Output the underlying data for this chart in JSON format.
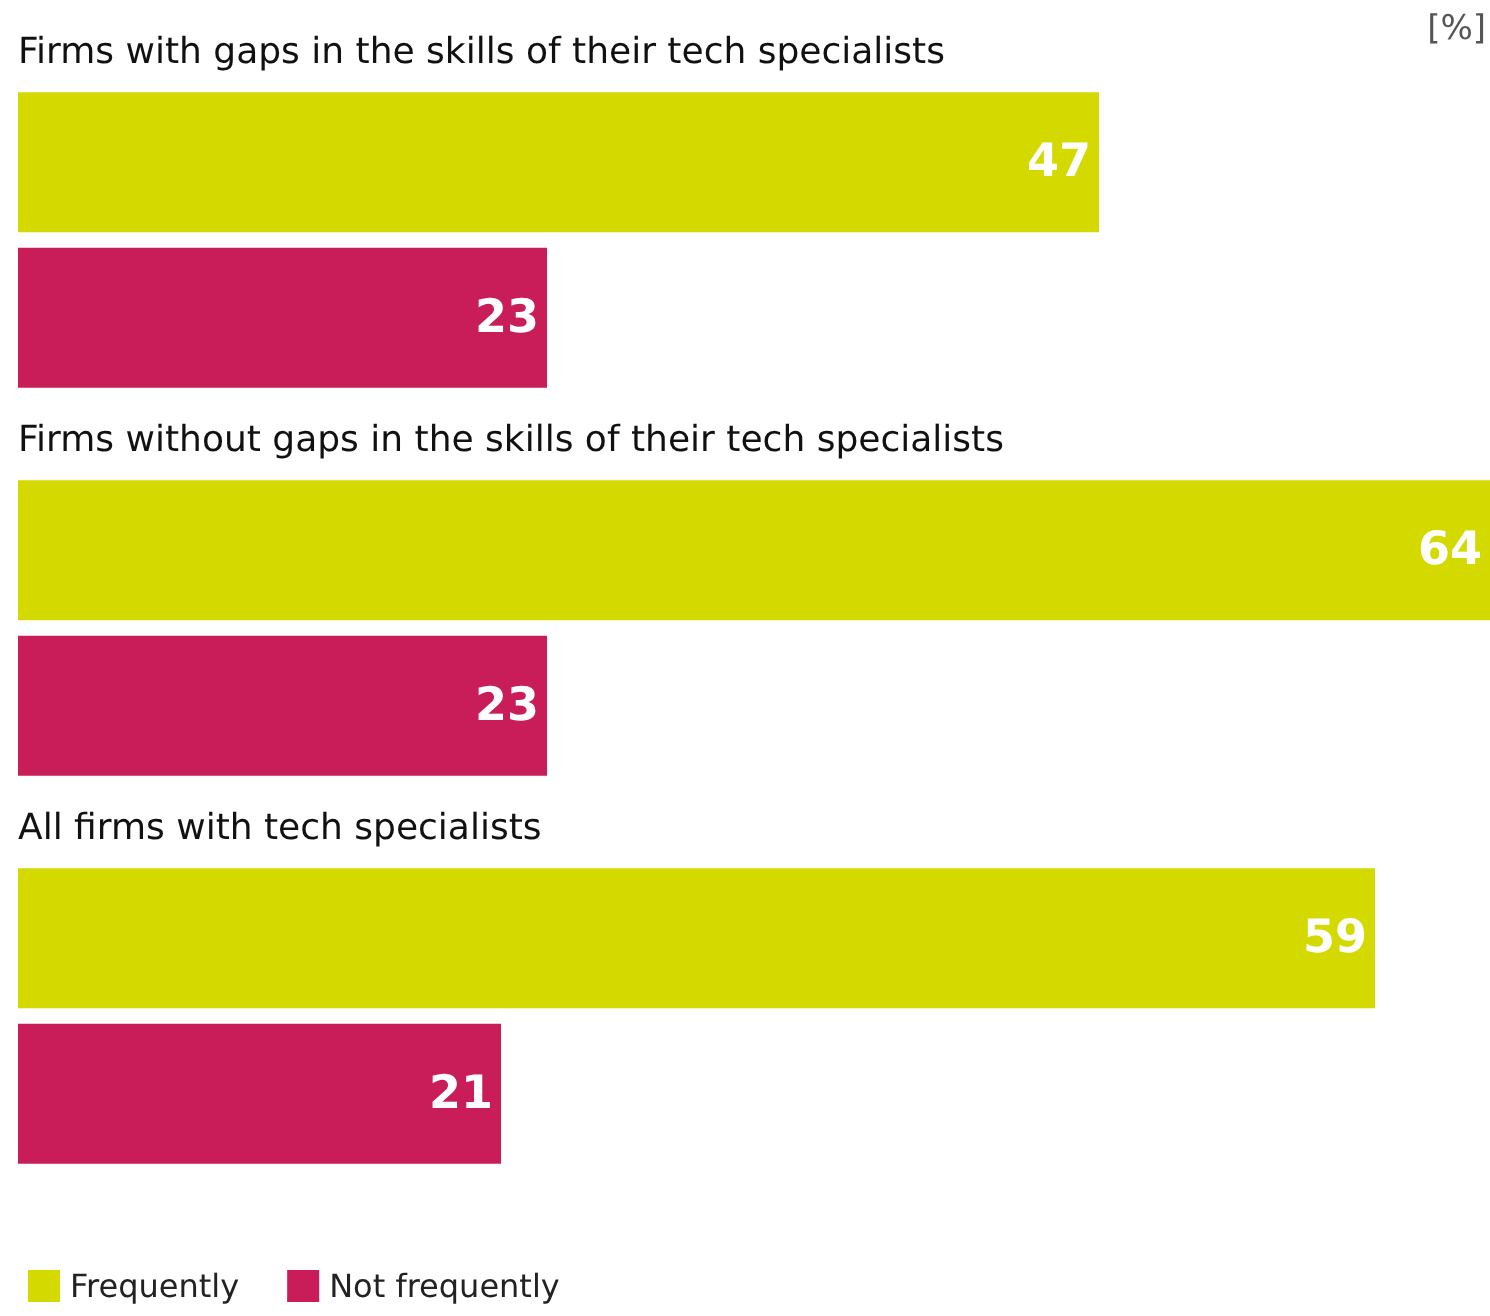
{
  "chart_data": {
    "type": "bar",
    "orientation": "horizontal",
    "categories": [
      "Firms with gaps in the skills of their tech specialists",
      "Firms without gaps in the skills of their tech specialists",
      "All firms with tech specialists"
    ],
    "series": [
      {
        "name": "Frequently",
        "color": "#d4d900",
        "values": [
          47,
          64,
          59
        ]
      },
      {
        "name": "Not frequently",
        "color": "#c91d5a",
        "values": [
          23,
          23,
          21
        ]
      }
    ],
    "data_labels": true,
    "legend": "bottom left",
    "annotations": [
      "[%]"
    ]
  }
}
